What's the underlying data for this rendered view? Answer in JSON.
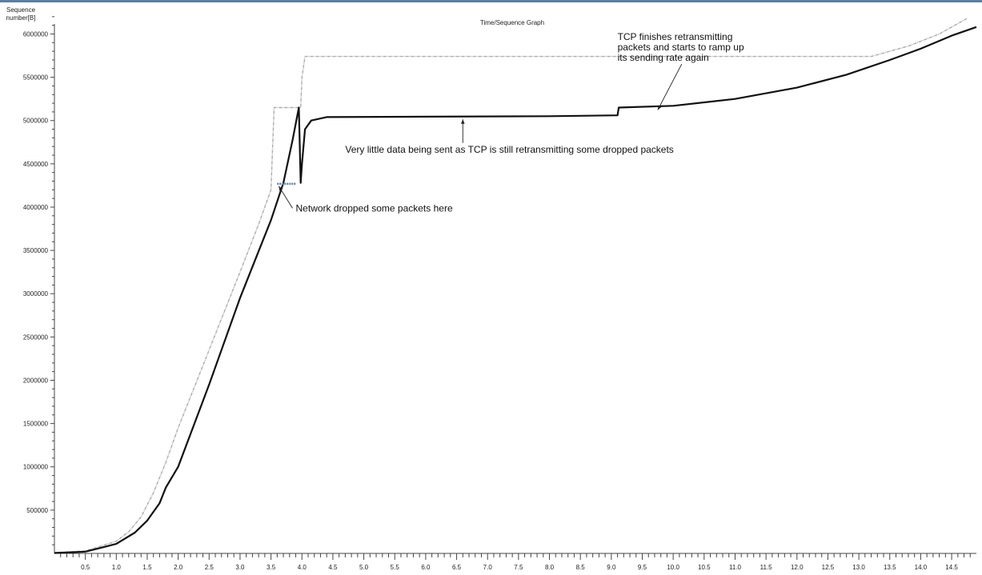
{
  "colors": {
    "top_border": "#5b7fa8",
    "ack_series": "#aaaaaa",
    "seq_series": "#111111",
    "retrans": "#5a7fb0"
  },
  "chart_data": {
    "type": "scatter",
    "title": "Time/Sequence Graph",
    "ylabel": "Sequence number[B]",
    "xlabel": "",
    "xlim": [
      0,
      14.9
    ],
    "ylim": [
      0,
      6300000
    ],
    "xticks": [
      "0.5",
      "1.0",
      "1.5",
      "2.0",
      "2.5",
      "3.0",
      "3.5",
      "4.0",
      "4.5",
      "5.0",
      "5.5",
      "6.0",
      "6.5",
      "7.0",
      "7.5",
      "8.0",
      "8.5",
      "9.0",
      "9.5",
      "10.0",
      "10.5",
      "11.0",
      "11.5",
      "12.0",
      "12.5",
      "13.0",
      "13.5",
      "14.0",
      "14.5"
    ],
    "yticks": [
      "500000",
      "1000000",
      "1500000",
      "2000000",
      "2500000",
      "3000000",
      "3500000",
      "4000000",
      "4500000",
      "5000000",
      "5500000",
      "6000000"
    ],
    "series": [
      {
        "values": [
          [
            0,
            10000
          ],
          [
            0.5,
            30000
          ],
          [
            1.0,
            140000
          ],
          [
            1.2,
            250000
          ],
          [
            1.4,
            420000
          ],
          [
            1.6,
            700000
          ],
          [
            1.8,
            1050000
          ],
          [
            2.0,
            1450000
          ],
          [
            2.5,
            2350000
          ],
          [
            3.0,
            3250000
          ],
          [
            3.3,
            3800000
          ],
          [
            3.5,
            4200000
          ],
          [
            3.55,
            5150000
          ],
          [
            3.98,
            5150000
          ],
          [
            4.0,
            5500000
          ],
          [
            4.05,
            5740000
          ],
          [
            5.0,
            5740000
          ],
          [
            9.0,
            5740000
          ],
          [
            13.2,
            5740000
          ],
          [
            13.8,
            5860000
          ],
          [
            14.3,
            6000000
          ],
          [
            14.75,
            6180000
          ]
        ]
      },
      {
        "values": [
          [
            0,
            5000
          ],
          [
            0.5,
            20000
          ],
          [
            1.0,
            110000
          ],
          [
            1.3,
            240000
          ],
          [
            1.5,
            380000
          ],
          [
            1.7,
            580000
          ],
          [
            1.8,
            760000
          ],
          [
            2.0,
            1000000
          ],
          [
            2.5,
            1950000
          ],
          [
            3.0,
            2950000
          ],
          [
            3.5,
            3850000
          ],
          [
            3.7,
            4280000
          ],
          [
            3.85,
            4780000
          ],
          [
            3.95,
            5150000
          ],
          [
            3.98,
            4280000
          ],
          [
            4.0,
            4500000
          ],
          [
            4.05,
            4900000
          ],
          [
            4.15,
            5000000
          ],
          [
            4.4,
            5040000
          ],
          [
            6.0,
            5045000
          ],
          [
            8.0,
            5050000
          ],
          [
            9.1,
            5060000
          ],
          [
            9.12,
            5150000
          ],
          [
            10.0,
            5170000
          ],
          [
            11.0,
            5250000
          ],
          [
            12.0,
            5380000
          ],
          [
            12.8,
            5530000
          ],
          [
            13.5,
            5700000
          ],
          [
            14.0,
            5830000
          ],
          [
            14.5,
            5980000
          ],
          [
            14.9,
            6080000
          ]
        ]
      },
      {
        "values": [
          [
            3.6,
            4270000
          ],
          [
            3.9,
            4270000
          ]
        ]
      }
    ],
    "annotations": [
      {
        "lines": [
          "TCP finishes retransmitting",
          "packets and starts to ramp up",
          "its sending rate again"
        ],
        "point": [
          9.75,
          5150000
        ],
        "text_at": [
          9.1,
          5930000
        ]
      },
      {
        "lines": [
          "Very little data being sent as TCP is still retransmitting some dropped packets"
        ],
        "point": [
          6.6,
          5060000
        ],
        "text_at": [
          4.7,
          4630000
        ]
      },
      {
        "lines": [
          "Network dropped some packets here"
        ],
        "point": [
          3.6,
          4270000
        ],
        "text_at": [
          3.9,
          3950000
        ]
      }
    ]
  }
}
